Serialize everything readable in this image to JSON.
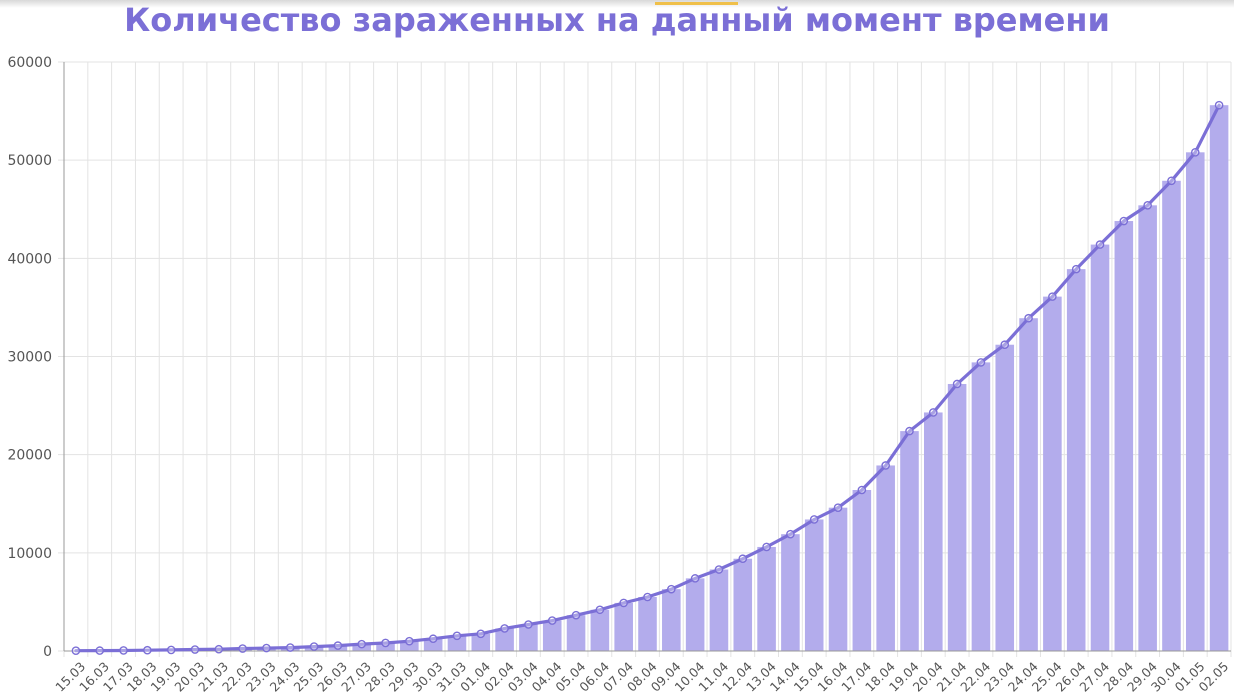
{
  "chart_data": {
    "type": "bar",
    "title": "Количество зараженных на данный момент времени",
    "xlabel": "",
    "ylabel": "",
    "ylim": [
      0,
      60000
    ],
    "yticks": [
      "0",
      "10000",
      "20000",
      "30000",
      "40000",
      "50000",
      "60000"
    ],
    "grid": true,
    "categories": [
      "15.03",
      "16.03",
      "17.03",
      "18.03",
      "19.03",
      "20.03",
      "21.03",
      "22.03",
      "23.03",
      "24.03",
      "25.03",
      "26.03",
      "27.03",
      "28.03",
      "29.03",
      "30.03",
      "31.03",
      "01.04",
      "02.04",
      "03.04",
      "04.04",
      "05.04",
      "06.04",
      "07.04",
      "08.04",
      "09.04",
      "10.04",
      "11.04",
      "12.04",
      "13.04",
      "14.04",
      "15.04",
      "16.04",
      "17.04",
      "18.04",
      "19.04",
      "20.04",
      "21.04",
      "22.04",
      "23.04",
      "24.04",
      "25.04",
      "26.04",
      "27.04",
      "28.04",
      "29.04",
      "30.04",
      "01.05",
      "02.05"
    ],
    "series": [
      {
        "kind": "bar",
        "values": [
          30,
          40,
          55,
          80,
          110,
          150,
          180,
          250,
          300,
          350,
          450,
          550,
          700,
          820,
          1000,
          1250,
          1550,
          1750,
          2300,
          2700,
          3100,
          3650,
          4200,
          4900,
          5500,
          6300,
          7400,
          8300,
          9400,
          10600,
          11900,
          13400,
          14600,
          16400,
          18900,
          22400,
          24300,
          27200,
          29400,
          31200,
          33900,
          36100,
          38900,
          41400,
          43800,
          45400,
          47900,
          50800,
          55600
        ]
      },
      {
        "kind": "line",
        "values": [
          30,
          40,
          55,
          80,
          110,
          150,
          180,
          250,
          300,
          350,
          450,
          550,
          700,
          820,
          1000,
          1250,
          1550,
          1750,
          2300,
          2700,
          3100,
          3650,
          4200,
          4900,
          5500,
          6300,
          7400,
          8300,
          9400,
          10600,
          11900,
          13400,
          14600,
          16400,
          18900,
          22400,
          24300,
          27200,
          29400,
          31200,
          33900,
          36100,
          38900,
          41400,
          43800,
          45400,
          47900,
          50800,
          55600
        ]
      }
    ],
    "colors": {
      "bar": "#b3acec",
      "line": "#7b6fd6",
      "grid": "#e3e3e3",
      "axis": "#999999",
      "title": "#7b6fd6"
    }
  }
}
